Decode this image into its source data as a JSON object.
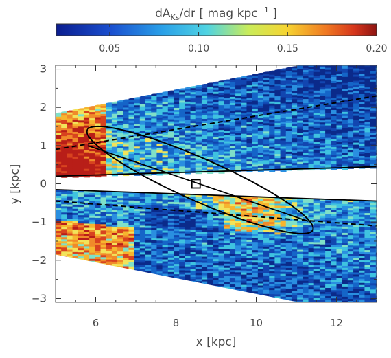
{
  "chart_data": {
    "type": "heatmap",
    "title": "",
    "colorbar": {
      "label_main": "dA",
      "label_sub": "Ks",
      "label_rest": "/dr  [ mag kpc",
      "label_sup": "−1",
      "label_end": " ]",
      "range": [
        0.02,
        0.2
      ],
      "ticks": [
        0.05,
        0.1,
        0.15,
        0.2
      ],
      "tick_labels": [
        "0.05",
        "0.10",
        "0.15",
        "0.20"
      ],
      "colormap": "jet-like",
      "position": "top"
    },
    "xlabel": "x [kpc]",
    "ylabel": "y [kpc]",
    "xlim": [
      5,
      13
    ],
    "ylim": [
      -3.1,
      3.1
    ],
    "xticks": [
      6,
      8,
      10,
      12
    ],
    "xtick_labels": [
      "6",
      "8",
      "10",
      "12"
    ],
    "yticks": [
      -3,
      -2,
      -1,
      0,
      1,
      2,
      3
    ],
    "ytick_labels": [
      "−3",
      "−2",
      "−1",
      "0",
      "1",
      "2",
      "3"
    ],
    "grid": false,
    "sun_position": {
      "x": 8.5,
      "y": 0.0
    },
    "ellipse": {
      "center": [
        8.6,
        0.1
      ],
      "semi_major": 3.1,
      "semi_minor": 0.55,
      "angle_deg": -25
    },
    "bar_line": {
      "x": [
        5.8,
        11.3
      ],
      "y": [
        1.0,
        -0.98
      ]
    },
    "dashed_line_upper": {
      "x": [
        5,
        13
      ],
      "y": [
        0.9,
        2.3
      ]
    },
    "dashed_line_lower": {
      "x": [
        5,
        13
      ],
      "y": [
        -0.45,
        -1.1
      ]
    },
    "cone_edges": {
      "upper_outer": {
        "x": [
          5,
          13
        ],
        "y": [
          1.85,
          3.5
        ]
      },
      "upper_inner": {
        "x": [
          5,
          13
        ],
        "y": [
          0.2,
          0.45
        ]
      },
      "lower_inner": {
        "x": [
          5,
          13
        ],
        "y": [
          -0.15,
          -0.45
        ]
      },
      "lower_outer": {
        "x": [
          5,
          13
        ],
        "y": [
          -1.85,
          -3.5
        ]
      }
    },
    "colors": {
      "red": "#c0221a",
      "orange": "#f08a2a",
      "yellow": "#f2e35a",
      "cyan": "#3fc3e0",
      "blue": "#1565c8",
      "navy": "#0b2a8a",
      "white": "#ffffff"
    }
  }
}
